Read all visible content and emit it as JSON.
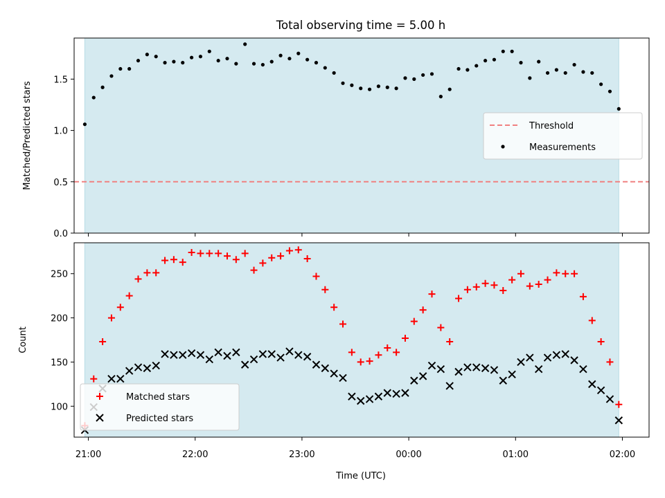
{
  "figure_title": "Total observing time = 5.00 h",
  "xlabel": "Time (UTC)",
  "colors": {
    "window_fill": "#d5eaf0",
    "threshold": "#f08080",
    "measurement": "#000000",
    "matched": "#ff0000",
    "predicted": "#000000"
  },
  "chart_data": [
    {
      "type": "scatter",
      "panel": "top",
      "ylabel": "Matched/Predicted stars",
      "xlim": [
        "20:52",
        "02:15"
      ],
      "ylim": [
        0,
        1.9
      ],
      "yticks": [
        0.0,
        0.5,
        1.0,
        1.5
      ],
      "ytick_labels": [
        "0.0",
        "0.5",
        "1.0",
        "1.5"
      ],
      "shaded_window": [
        "20:58",
        "01:58"
      ],
      "legend_position": "center-right",
      "threshold": {
        "name": "Threshold",
        "value": 0.5,
        "style": "dashed"
      },
      "series": [
        {
          "name": "Measurements",
          "marker": "dot",
          "x": [
            "20:58",
            "21:03",
            "21:08",
            "21:13",
            "21:18",
            "21:23",
            "21:28",
            "21:33",
            "21:38",
            "21:43",
            "21:48",
            "21:53",
            "21:58",
            "22:03",
            "22:08",
            "22:13",
            "22:18",
            "22:23",
            "22:28",
            "22:33",
            "22:38",
            "22:43",
            "22:48",
            "22:53",
            "22:58",
            "23:03",
            "23:08",
            "23:13",
            "23:18",
            "23:23",
            "23:28",
            "23:33",
            "23:38",
            "23:43",
            "23:48",
            "23:53",
            "23:58",
            "00:03",
            "00:08",
            "00:13",
            "00:18",
            "00:23",
            "00:28",
            "00:33",
            "00:38",
            "00:43",
            "00:48",
            "00:53",
            "00:58",
            "01:03",
            "01:08",
            "01:13",
            "01:18",
            "01:23",
            "01:28",
            "01:33",
            "01:38",
            "01:43",
            "01:48",
            "01:53",
            "01:58"
          ],
          "y": [
            1.06,
            1.32,
            1.42,
            1.53,
            1.6,
            1.6,
            1.68,
            1.74,
            1.72,
            1.66,
            1.67,
            1.66,
            1.71,
            1.72,
            1.77,
            1.68,
            1.7,
            1.65,
            1.84,
            1.65,
            1.64,
            1.67,
            1.73,
            1.7,
            1.75,
            1.69,
            1.66,
            1.61,
            1.56,
            1.46,
            1.44,
            1.41,
            1.4,
            1.43,
            1.42,
            1.41,
            1.51,
            1.5,
            1.54,
            1.55,
            1.33,
            1.4,
            1.6,
            1.59,
            1.63,
            1.68,
            1.69,
            1.77,
            1.77,
            1.66,
            1.51,
            1.67,
            1.56,
            1.59,
            1.56,
            1.64,
            1.57,
            1.56,
            1.45,
            1.38,
            1.21
          ]
        }
      ]
    },
    {
      "type": "scatter",
      "panel": "bottom",
      "ylabel": "Count",
      "xlim": [
        "20:52",
        "02:15"
      ],
      "ylim": [
        65,
        285
      ],
      "yticks": [
        100,
        150,
        200,
        250
      ],
      "ytick_labels": [
        "100",
        "150",
        "200",
        "250"
      ],
      "xticks": [
        "21:00",
        "22:00",
        "23:00",
        "00:00",
        "01:00",
        "02:00"
      ],
      "shaded_window": [
        "20:58",
        "01:58"
      ],
      "legend_position": "lower-left",
      "series": [
        {
          "name": "Matched stars",
          "marker": "plus",
          "x": [
            "20:58",
            "21:03",
            "21:08",
            "21:13",
            "21:18",
            "21:23",
            "21:28",
            "21:33",
            "21:38",
            "21:43",
            "21:48",
            "21:53",
            "21:58",
            "22:03",
            "22:08",
            "22:13",
            "22:18",
            "22:23",
            "22:28",
            "22:33",
            "22:38",
            "22:43",
            "22:48",
            "22:53",
            "22:58",
            "23:03",
            "23:08",
            "23:13",
            "23:18",
            "23:23",
            "23:28",
            "23:33",
            "23:38",
            "23:43",
            "23:48",
            "23:53",
            "23:58",
            "00:03",
            "00:08",
            "00:13",
            "00:18",
            "00:23",
            "00:28",
            "00:33",
            "00:38",
            "00:43",
            "00:48",
            "00:53",
            "00:58",
            "01:03",
            "01:08",
            "01:13",
            "01:18",
            "01:23",
            "01:28",
            "01:33",
            "01:38",
            "01:43",
            "01:48",
            "01:53",
            "01:58"
          ],
          "y": [
            78,
            131,
            173,
            200,
            212,
            225,
            244,
            251,
            251,
            265,
            266,
            263,
            274,
            273,
            273,
            273,
            270,
            266,
            273,
            254,
            262,
            268,
            270,
            276,
            277,
            267,
            247,
            232,
            212,
            193,
            161,
            150,
            151,
            158,
            166,
            161,
            177,
            196,
            209,
            227,
            189,
            173,
            222,
            232,
            235,
            239,
            237,
            231,
            243,
            250,
            236,
            238,
            243,
            251,
            250,
            250,
            224,
            197,
            173,
            150,
            102
          ]
        },
        {
          "name": "Predicted stars",
          "marker": "x",
          "x": [
            "20:58",
            "21:03",
            "21:08",
            "21:13",
            "21:18",
            "21:23",
            "21:28",
            "21:33",
            "21:38",
            "21:43",
            "21:48",
            "21:53",
            "21:58",
            "22:03",
            "22:08",
            "22:13",
            "22:18",
            "22:23",
            "22:28",
            "22:33",
            "22:38",
            "22:43",
            "22:48",
            "22:53",
            "22:58",
            "23:03",
            "23:08",
            "23:13",
            "23:18",
            "23:23",
            "23:28",
            "23:33",
            "23:38",
            "23:43",
            "23:48",
            "23:53",
            "23:58",
            "00:03",
            "00:08",
            "00:13",
            "00:18",
            "00:23",
            "00:28",
            "00:33",
            "00:38",
            "00:43",
            "00:48",
            "00:53",
            "00:58",
            "01:03",
            "01:08",
            "01:13",
            "01:18",
            "01:23",
            "01:28",
            "01:33",
            "01:38",
            "01:43",
            "01:48",
            "01:53",
            "01:58"
          ],
          "y": [
            73,
            99,
            120,
            131,
            131,
            140,
            144,
            143,
            146,
            159,
            158,
            158,
            160,
            158,
            153,
            161,
            157,
            161,
            147,
            153,
            159,
            159,
            155,
            162,
            158,
            156,
            147,
            143,
            137,
            132,
            111,
            106,
            108,
            111,
            115,
            114,
            115,
            129,
            134,
            146,
            142,
            123,
            139,
            144,
            144,
            143,
            141,
            129,
            136,
            150,
            155,
            142,
            155,
            158,
            159,
            152,
            142,
            125,
            118,
            108,
            84
          ]
        }
      ]
    }
  ]
}
